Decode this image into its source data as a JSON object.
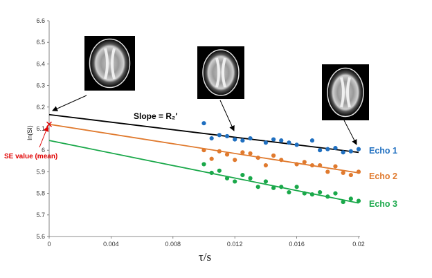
{
  "chart_data": {
    "type": "scatter",
    "xlabel": "τ/s",
    "ylabel": "ln(SI)",
    "xlim": [
      0,
      0.02
    ],
    "ylim": [
      5.6,
      6.6
    ],
    "xticks": [
      "0",
      "0.004",
      "0.008",
      "0.012",
      "0.016",
      "0.02"
    ],
    "yticks": [
      "5.6",
      "5.7",
      "5.8",
      "5.9",
      "6",
      "6.1",
      "6.2",
      "6.3",
      "6.4",
      "6.5",
      "6.6"
    ],
    "grid": false,
    "series": [
      {
        "name": "Echo 1",
        "color": "#1f6fc0",
        "fit_line_color": "#000000",
        "fit": {
          "x0": 0,
          "y0": 6.165,
          "x1": 0.02,
          "y1": 5.99
        },
        "x": [
          0.01,
          0.0105,
          0.011,
          0.0115,
          0.012,
          0.0125,
          0.013,
          0.014,
          0.0145,
          0.015,
          0.0155,
          0.016,
          0.017,
          0.0175,
          0.018,
          0.0185,
          0.019,
          0.0195,
          0.02
        ],
        "y": [
          6.125,
          6.055,
          6.07,
          6.065,
          6.05,
          6.045,
          6.055,
          6.035,
          6.05,
          6.045,
          6.035,
          6.025,
          6.045,
          6.0,
          6.005,
          6.01,
          5.99,
          5.995,
          6.005
        ]
      },
      {
        "name": "Echo 2",
        "color": "#e07a2e",
        "fit_line_color": "#e07a2e",
        "fit": {
          "x0": 0,
          "y0": 6.12,
          "x1": 0.02,
          "y1": 5.895
        },
        "x": [
          0.01,
          0.0105,
          0.011,
          0.0115,
          0.012,
          0.0125,
          0.013,
          0.0135,
          0.014,
          0.0145,
          0.015,
          0.016,
          0.0165,
          0.017,
          0.0175,
          0.018,
          0.0185,
          0.019,
          0.0195,
          0.02
        ],
        "y": [
          6.0,
          5.96,
          5.995,
          5.98,
          5.955,
          5.99,
          5.985,
          5.965,
          5.93,
          5.975,
          5.955,
          5.935,
          5.945,
          5.93,
          5.93,
          5.9,
          5.925,
          5.895,
          5.885,
          5.9
        ]
      },
      {
        "name": "Echo 3",
        "color": "#1aa84a",
        "fit_line_color": "#1aa84a",
        "fit": {
          "x0": 0,
          "y0": 6.045,
          "x1": 0.02,
          "y1": 5.755
        },
        "x": [
          0.01,
          0.0105,
          0.011,
          0.0115,
          0.012,
          0.0125,
          0.013,
          0.0135,
          0.014,
          0.0145,
          0.015,
          0.0155,
          0.016,
          0.0165,
          0.017,
          0.0175,
          0.018,
          0.0185,
          0.019,
          0.0195,
          0.02
        ],
        "y": [
          5.935,
          5.895,
          5.905,
          5.87,
          5.855,
          5.885,
          5.87,
          5.83,
          5.855,
          5.825,
          5.83,
          5.805,
          5.83,
          5.8,
          5.795,
          5.805,
          5.785,
          5.8,
          5.76,
          5.775,
          5.765
        ]
      }
    ],
    "annotations": {
      "slope_label": "Slope = R₂′",
      "se_label": "SE value (mean)",
      "se_point": {
        "x": 0,
        "y": 6.12,
        "color": "#e00000"
      }
    },
    "brain_images": [
      {
        "name": "brain-image-echo-1"
      },
      {
        "name": "brain-image-echo-2"
      },
      {
        "name": "brain-image-echo-3"
      }
    ]
  }
}
